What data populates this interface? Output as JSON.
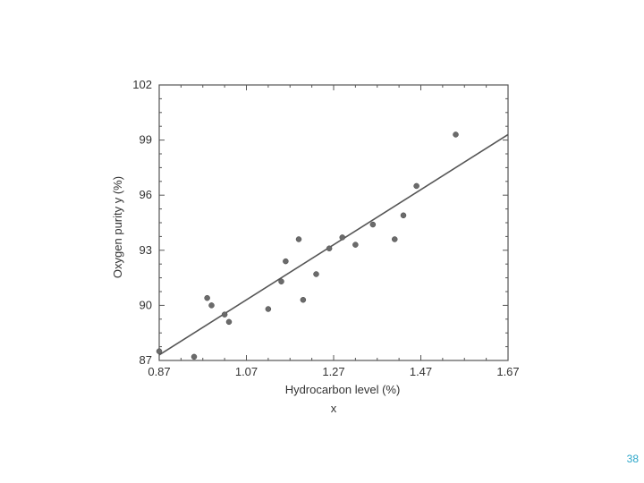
{
  "slide": {
    "page_number": "38"
  },
  "chart_data": {
    "type": "scatter",
    "title": "",
    "xlabel": "Hydrocarbon level (%)",
    "ylabel": "Oxygen purity y (%)",
    "caption": "x",
    "xlim": [
      0.87,
      1.67
    ],
    "ylim": [
      87,
      102
    ],
    "xticks": [
      0.87,
      1.07,
      1.27,
      1.47,
      1.67
    ],
    "xtick_labels": [
      "0.87",
      "1.07",
      "1.27",
      "1.47",
      "1.67"
    ],
    "yticks": [
      87,
      90,
      93,
      96,
      99,
      102
    ],
    "ytick_labels": [
      "87",
      "90",
      "93",
      "96",
      "99",
      "102"
    ],
    "grid": false,
    "series": [
      {
        "x": [
          0.87,
          0.95,
          0.98,
          0.99,
          1.02,
          1.03,
          1.12,
          1.15,
          1.16,
          1.19,
          1.2,
          1.23,
          1.26,
          1.29,
          1.32,
          1.36,
          1.41,
          1.43,
          1.46,
          1.55
        ],
        "y": [
          87.5,
          87.2,
          90.4,
          90.0,
          89.5,
          89.1,
          89.8,
          91.3,
          92.4,
          93.6,
          90.3,
          91.7,
          93.1,
          93.7,
          93.3,
          94.4,
          93.6,
          94.9,
          96.5,
          99.3
        ],
        "color": "#6b6b6b"
      }
    ],
    "fit_line": {
      "x": [
        0.87,
        1.67
      ],
      "y": [
        87.3,
        99.3
      ],
      "color": "#555555"
    }
  }
}
